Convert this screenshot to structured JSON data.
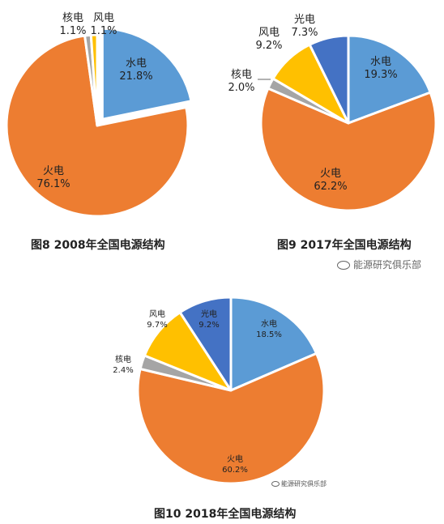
{
  "colors": {
    "hydro": "#5B9BD5",
    "thermal": "#ED7D31",
    "nuclear": "#A5A5A5",
    "wind": "#FFC000",
    "solar": "#4472C4"
  },
  "chart_data": [
    {
      "type": "pie",
      "title": "图8  2008年全国电源结构",
      "slices": [
        {
          "label": "水电",
          "value": 21.8,
          "display": "21.8%",
          "color_key": "hydro",
          "exploded": true
        },
        {
          "label": "火电",
          "value": 76.1,
          "display": "76.1%",
          "color_key": "thermal",
          "exploded": false
        },
        {
          "label": "核电",
          "value": 1.1,
          "display": "1.1%",
          "color_key": "nuclear",
          "exploded": false
        },
        {
          "label": "风电",
          "value": 1.1,
          "display": "1.1%",
          "color_key": "wind",
          "exploded": false
        }
      ]
    },
    {
      "type": "pie",
      "title": "图9  2017年全国电源结构",
      "slices": [
        {
          "label": "水电",
          "value": 19.3,
          "display": "19.3%",
          "color_key": "hydro",
          "exploded": false
        },
        {
          "label": "火电",
          "value": 62.2,
          "display": "62.2%",
          "color_key": "thermal",
          "exploded": false
        },
        {
          "label": "核电",
          "value": 2.0,
          "display": "2.0%",
          "color_key": "nuclear",
          "exploded": false
        },
        {
          "label": "风电",
          "value": 9.2,
          "display": "9.2%",
          "color_key": "wind",
          "exploded": false
        },
        {
          "label": "光电",
          "value": 7.3,
          "display": "7.3%",
          "color_key": "solar",
          "exploded": false
        }
      ]
    },
    {
      "type": "pie",
      "title": "图10  2018年全国电源结构",
      "slices": [
        {
          "label": "水电",
          "value": 18.5,
          "display": "18.5%",
          "color_key": "hydro",
          "exploded": false
        },
        {
          "label": "火电",
          "value": 60.2,
          "display": "60.2%",
          "color_key": "thermal",
          "exploded": false
        },
        {
          "label": "核电",
          "value": 2.4,
          "display": "2.4%",
          "color_key": "nuclear",
          "exploded": false
        },
        {
          "label": "风电",
          "value": 9.7,
          "display": "9.7%",
          "color_key": "wind",
          "exploded": false
        },
        {
          "label": "光电",
          "value": 9.2,
          "display": "9.2%",
          "color_key": "solar",
          "exploded": false
        }
      ]
    }
  ],
  "watermarks": {
    "main": "能源研究俱乐部",
    "small": "能源研究俱乐部"
  }
}
